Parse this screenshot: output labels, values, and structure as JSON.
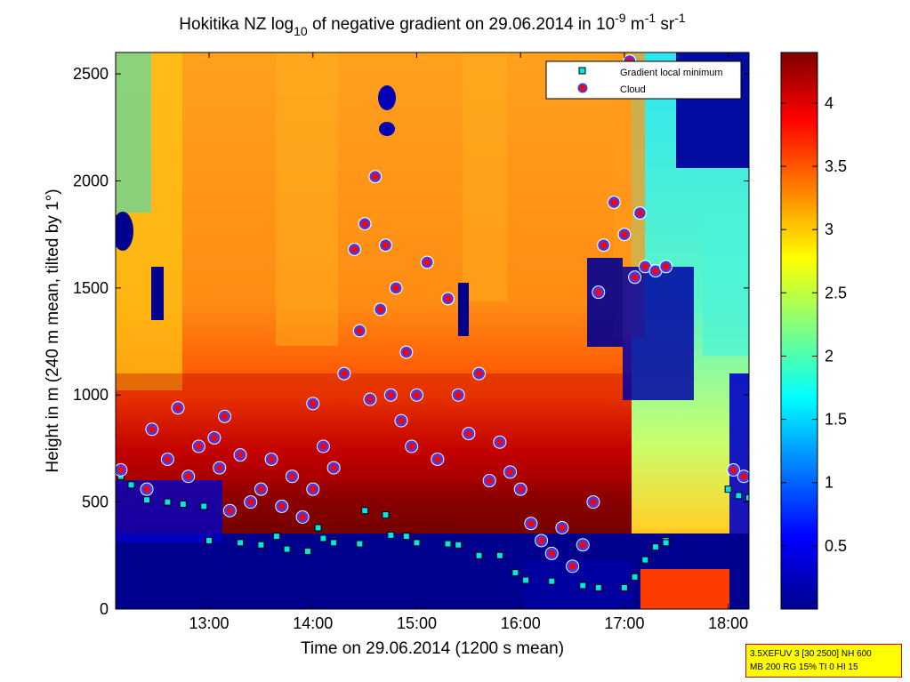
{
  "title": {
    "prefix": "Hokitika NZ log",
    "log_sub": "10",
    "middle": " of negative gradient on 29.06.2014 in 10",
    "exp1": "-9",
    "unit1": " m",
    "exp2": "-1",
    "unit2": " sr",
    "exp3": "-1"
  },
  "info_box": {
    "line1": "3.5XEFUV 3 [30 2500] NH 600",
    "line2": "MB 200 RG 15% TI 0 HI 15"
  },
  "chart_data": {
    "type": "heatmap",
    "xlabel": "Time on 29.06.2014 (1200 s mean)",
    "ylabel": "Height in m (240 m mean, tilted by 1°)",
    "x_range_hours": [
      12.1,
      18.2
    ],
    "x_ticks": [
      {
        "value": 13,
        "label": "13:00"
      },
      {
        "value": 14,
        "label": "14:00"
      },
      {
        "value": 15,
        "label": "15:00"
      },
      {
        "value": 16,
        "label": "16:00"
      },
      {
        "value": 17,
        "label": "17:00"
      },
      {
        "value": 18,
        "label": "18:00"
      }
    ],
    "ylim": [
      0,
      2600
    ],
    "y_ticks": [
      0,
      500,
      1000,
      1500,
      2000,
      2500
    ],
    "colorbar": {
      "range": [
        0,
        4.4
      ],
      "ticks": [
        0.5,
        1,
        1.5,
        2,
        2.5,
        3,
        3.5,
        4
      ],
      "colormap": "jet"
    },
    "legend": {
      "position": "top-right",
      "entries": [
        {
          "label": "Gradient local minimum",
          "marker": "square",
          "color": "#00e5e5"
        },
        {
          "label": "Cloud",
          "marker": "circle",
          "color": "#ff0000"
        }
      ]
    },
    "gradient_local_minimum": [
      [
        12.15,
        620
      ],
      [
        12.25,
        580
      ],
      [
        12.4,
        510
      ],
      [
        12.6,
        500
      ],
      [
        12.75,
        490
      ],
      [
        12.95,
        480
      ],
      [
        13.0,
        320
      ],
      [
        13.3,
        310
      ],
      [
        13.5,
        300
      ],
      [
        13.65,
        340
      ],
      [
        13.75,
        280
      ],
      [
        13.95,
        270
      ],
      [
        14.05,
        380
      ],
      [
        14.1,
        330
      ],
      [
        14.2,
        310
      ],
      [
        14.45,
        305
      ],
      [
        14.5,
        460
      ],
      [
        14.7,
        440
      ],
      [
        14.75,
        345
      ],
      [
        14.9,
        340
      ],
      [
        15.0,
        310
      ],
      [
        15.3,
        305
      ],
      [
        15.4,
        300
      ],
      [
        15.6,
        250
      ],
      [
        15.8,
        250
      ],
      [
        15.95,
        170
      ],
      [
        16.05,
        135
      ],
      [
        16.3,
        130
      ],
      [
        16.6,
        110
      ],
      [
        16.75,
        100
      ],
      [
        17.0,
        100
      ],
      [
        17.1,
        150
      ],
      [
        17.2,
        230
      ],
      [
        17.3,
        290
      ],
      [
        17.4,
        320
      ],
      [
        17.4,
        310
      ],
      [
        18.0,
        560
      ],
      [
        18.1,
        530
      ],
      [
        18.2,
        520
      ]
    ],
    "cloud": [
      [
        12.15,
        650
      ],
      [
        12.4,
        560
      ],
      [
        12.45,
        840
      ],
      [
        12.6,
        700
      ],
      [
        12.7,
        940
      ],
      [
        12.8,
        620
      ],
      [
        12.9,
        760
      ],
      [
        13.05,
        800
      ],
      [
        13.1,
        660
      ],
      [
        13.2,
        460
      ],
      [
        13.3,
        720
      ],
      [
        13.4,
        500
      ],
      [
        13.5,
        560
      ],
      [
        13.6,
        700
      ],
      [
        13.7,
        480
      ],
      [
        13.8,
        620
      ],
      [
        13.9,
        430
      ],
      [
        14.0,
        560
      ],
      [
        14.1,
        760
      ],
      [
        14.2,
        660
      ],
      [
        14.3,
        1100
      ],
      [
        14.4,
        1680
      ],
      [
        14.45,
        1300
      ],
      [
        14.5,
        1800
      ],
      [
        14.55,
        980
      ],
      [
        14.6,
        2020
      ],
      [
        14.65,
        1400
      ],
      [
        14.7,
        1700
      ],
      [
        14.75,
        1000
      ],
      [
        14.8,
        1500
      ],
      [
        14.85,
        880
      ],
      [
        14.9,
        1200
      ],
      [
        14.95,
        760
      ],
      [
        15.0,
        1000
      ],
      [
        15.1,
        1620
      ],
      [
        15.2,
        700
      ],
      [
        15.3,
        1450
      ],
      [
        15.4,
        1000
      ],
      [
        15.5,
        820
      ],
      [
        15.6,
        1100
      ],
      [
        15.7,
        600
      ],
      [
        15.8,
        780
      ],
      [
        15.9,
        640
      ],
      [
        16.0,
        560
      ],
      [
        16.1,
        400
      ],
      [
        16.2,
        320
      ],
      [
        16.3,
        260
      ],
      [
        16.4,
        380
      ],
      [
        16.5,
        200
      ],
      [
        16.6,
        300
      ],
      [
        16.7,
        500
      ],
      [
        16.75,
        1480
      ],
      [
        16.8,
        1700
      ],
      [
        16.9,
        1900
      ],
      [
        17.0,
        1750
      ],
      [
        17.1,
        1550
      ],
      [
        17.15,
        1850
      ],
      [
        17.2,
        1600
      ],
      [
        17.3,
        1580
      ],
      [
        17.4,
        1600
      ],
      [
        18.05,
        650
      ],
      [
        18.15,
        620
      ],
      [
        17.05,
        2560
      ],
      [
        13.15,
        900
      ],
      [
        14.0,
        960
      ]
    ]
  }
}
